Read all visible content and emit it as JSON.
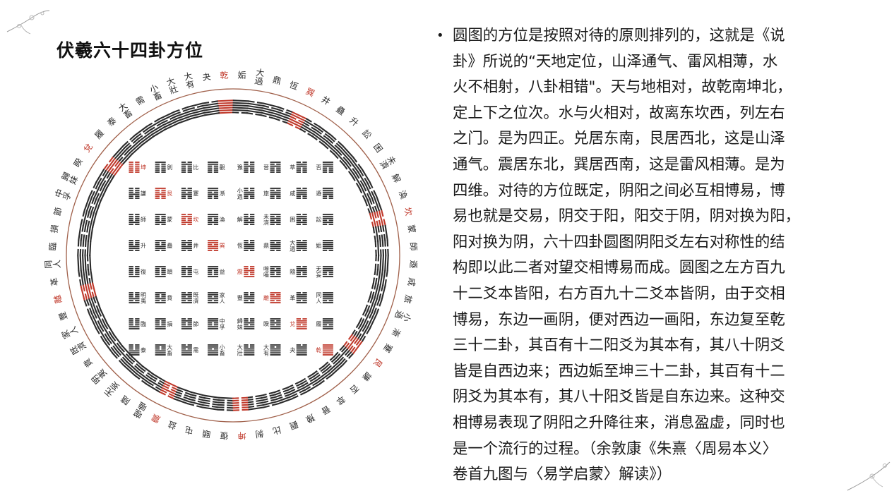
{
  "title": "伏羲六十四卦方位",
  "colors": {
    "accent": "#c0392b",
    "ring": "#a0604a",
    "ink": "#2b2b2b"
  },
  "hexagram_names_by_value": [
    "坤",
    "剝",
    "比",
    "觀",
    "豫",
    "晉",
    "萃",
    "否",
    "謙",
    "艮",
    "蹇",
    "漸",
    "小過",
    "旅",
    "咸",
    "遯",
    "師",
    "蒙",
    "坎",
    "渙",
    "解",
    "未濟",
    "困",
    "訟",
    "升",
    "蠱",
    "井",
    "巽",
    "恆",
    "鼎",
    "大過",
    "姤",
    "復",
    "頤",
    "屯",
    "益",
    "震",
    "噬嗑",
    "隨",
    "无妄",
    "明夷",
    "賁",
    "既濟",
    "家人",
    "豐",
    "離",
    "革",
    "同人",
    "臨",
    "損",
    "節",
    "中孚",
    "歸妹",
    "睽",
    "兌",
    "履",
    "泰",
    "大畜",
    "需",
    "小畜",
    "大壯",
    "大有",
    "夬",
    "乾"
  ],
  "highlighted_values": [
    0,
    9,
    18,
    27,
    36,
    45,
    54,
    63
  ],
  "body": {
    "bullet": "•",
    "lines": [
      "圆图的方位是按照对待的原则排列的，这就是《说",
      "卦》所说的“天地定位，山泽通气、雷风相薄，水",
      "火不相射，八卦相错\"。天与地相对，故乾南坤北，",
      "定上下之位次。水与火相对，故离东坎西，列左右",
      "之门。是为四正。兑居东南，艮居西北，这是山泽",
      "通气。震居东北，巽居西南，这是雷风相薄。是为",
      "四维。对待的方位既定，阴阳之间必互相博易，博",
      "易也就是交易，阴交于阳，阳交于阴，阴对换为阳，",
      "阳对换为阴，六十四卦圆图阴阳爻左右对称性的结",
      "构即以此二者对望交相博易而成。圆图之左方百九",
      "十二爻本皆阳，右方百九十二爻本皆阴，由于交相",
      "博易，东边一画阴，便对西边一画阳，东边复至乾",
      "三十二卦，其百有十二阳爻为其本有，其八十阴爻",
      "皆是自西边来；西边姤至坤三十二卦，其百有十二",
      "阴爻为其本有，其八十阳爻皆是自东边来。这种交",
      "相博易表现了阴阳之升降往来，消息盈虚，同时也",
      "是一个流行的过程。（余敦康《朱熹〈周易本义〉",
      "卷首九图与〈易学启蒙〉解读》）"
    ]
  }
}
